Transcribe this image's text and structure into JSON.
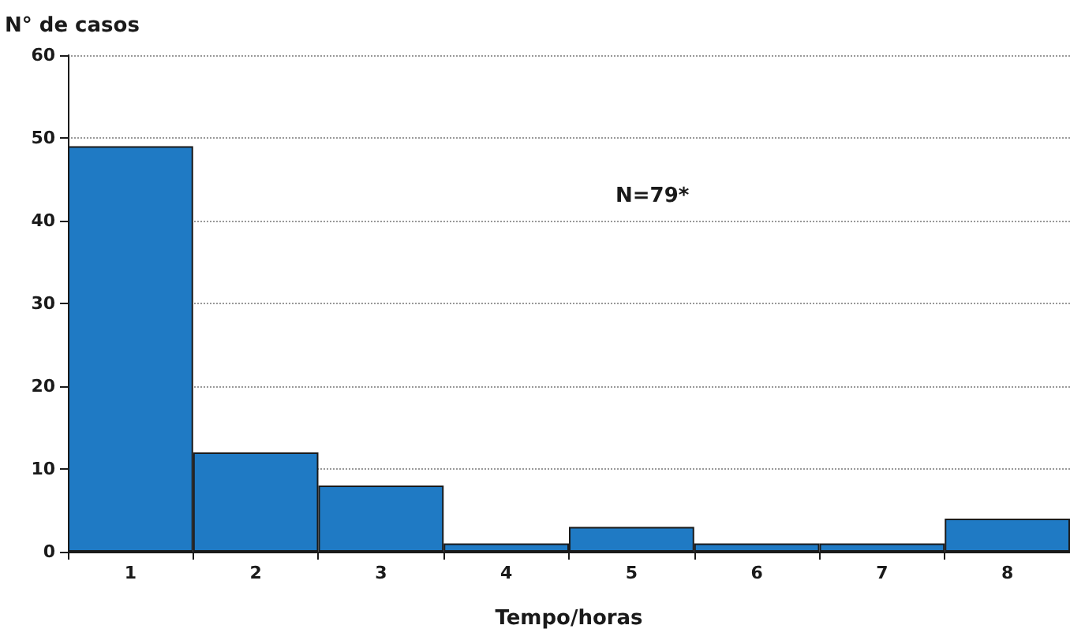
{
  "chart_data": {
    "type": "bar",
    "categories": [
      "1",
      "2",
      "3",
      "4",
      "5",
      "6",
      "7",
      "8"
    ],
    "values": [
      49,
      12,
      8,
      1,
      3,
      1,
      1,
      4
    ],
    "color": "#1f7ac4",
    "xlabel": "Tempo/horas",
    "ylabel": "N° de casos",
    "ylim": [
      0,
      60
    ],
    "yticks": [
      0,
      10,
      20,
      30,
      40,
      50,
      60
    ],
    "grid": "y",
    "annotations": [
      "N=79*"
    ]
  }
}
